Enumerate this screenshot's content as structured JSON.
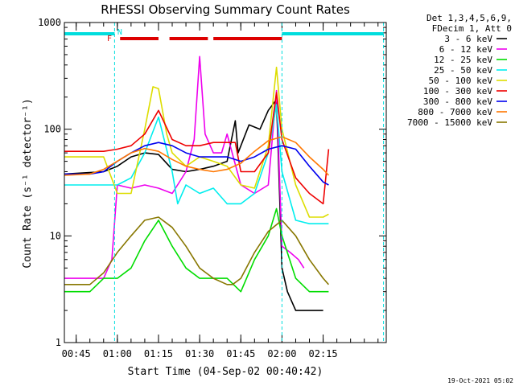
{
  "chart_data": {
    "type": "line",
    "title": "RHESSI Observing Summary Count Rates",
    "xlabel": "Start Time (04-Sep-02 00:40:42)",
    "ylabel": "Count Rate (s⁻¹ detector⁻¹)",
    "y_scale": "log",
    "ylim": [
      1,
      1000
    ],
    "xlim_minutes": [
      40.7,
      158
    ],
    "x_tick_labels": [
      "00:45",
      "01:00",
      "01:15",
      "01:30",
      "01:45",
      "02:00",
      "02:15"
    ],
    "x_tick_minutes": [
      45,
      60,
      75,
      90,
      105,
      120,
      135
    ],
    "y_tick_labels": [
      "1",
      "10",
      "100",
      "1000"
    ],
    "y_tick_values": [
      1,
      10,
      100,
      1000
    ],
    "legend_header": [
      "Det 1,3,4,5,6,9,",
      "FDecim 1, Att 0"
    ],
    "timestamp": "19-Oct-2021 05:02",
    "flags": {
      "F_label": "F",
      "N_label": "N",
      "F_color": "#dd0000",
      "N_color": "#00dddd"
    },
    "series": [
      {
        "name": "3 - 6 keV",
        "color": "#000000",
        "x": [
          40.7,
          55,
          60,
          65,
          70,
          75,
          80,
          85,
          90,
          95,
          100,
          103,
          104,
          108,
          112,
          115,
          118,
          120,
          122,
          125,
          130,
          135
        ],
        "y": [
          38,
          40,
          45,
          55,
          60,
          58,
          42,
          40,
          42,
          45,
          50,
          120,
          60,
          110,
          100,
          150,
          190,
          5,
          3,
          2,
          2,
          2
        ]
      },
      {
        "name": "6 - 12 keV",
        "color": "#ee00ee",
        "x": [
          40.7,
          55,
          58,
          60,
          65,
          70,
          75,
          80,
          85,
          88,
          90,
          92,
          95,
          98,
          100,
          105,
          110,
          115,
          118,
          120,
          123,
          126,
          128
        ],
        "y": [
          4,
          4,
          6,
          30,
          28,
          30,
          28,
          25,
          40,
          80,
          480,
          90,
          60,
          60,
          90,
          30,
          25,
          30,
          230,
          8,
          7,
          6,
          5
        ]
      },
      {
        "name": "12 - 25 keV",
        "color": "#00dd00",
        "x": [
          40.7,
          50,
          55,
          60,
          65,
          70,
          75,
          80,
          85,
          90,
          95,
          100,
          105,
          110,
          115,
          118,
          120,
          125,
          130,
          135,
          137
        ],
        "y": [
          3,
          3,
          4,
          4,
          5,
          9,
          14,
          8,
          5,
          4,
          4,
          4,
          3,
          6,
          10,
          18,
          10,
          4,
          3,
          3,
          3
        ]
      },
      {
        "name": "25 - 50 keV",
        "color": "#00eeee",
        "x": [
          40.7,
          50,
          55,
          60,
          65,
          70,
          75,
          80,
          82,
          85,
          90,
          95,
          100,
          105,
          110,
          115,
          118,
          120,
          125,
          130,
          135,
          137
        ],
        "y": [
          30,
          30,
          30,
          30,
          35,
          60,
          130,
          40,
          20,
          30,
          25,
          28,
          20,
          20,
          25,
          60,
          170,
          40,
          14,
          13,
          13,
          13
        ]
      },
      {
        "name": "50 - 100 keV",
        "color": "#dddd00",
        "x": [
          40.7,
          50,
          55,
          60,
          65,
          70,
          73,
          75,
          78,
          80,
          85,
          90,
          95,
          100,
          105,
          110,
          115,
          118,
          120,
          125,
          130,
          135,
          137
        ],
        "y": [
          55,
          55,
          55,
          25,
          25,
          100,
          250,
          240,
          90,
          60,
          45,
          55,
          50,
          45,
          30,
          28,
          70,
          380,
          100,
          30,
          15,
          15,
          16
        ]
      },
      {
        "name": "100 - 300 keV",
        "color": "#ee0000",
        "x": [
          40.7,
          50,
          55,
          60,
          65,
          70,
          75,
          80,
          85,
          90,
          95,
          100,
          103,
          105,
          110,
          115,
          118,
          120,
          125,
          130,
          135,
          137
        ],
        "y": [
          62,
          62,
          62,
          65,
          70,
          90,
          150,
          80,
          70,
          70,
          75,
          75,
          75,
          40,
          40,
          60,
          220,
          80,
          35,
          25,
          20,
          65
        ]
      },
      {
        "name": "300 - 800 keV",
        "color": "#0000ee",
        "x": [
          40.7,
          50,
          55,
          60,
          65,
          70,
          75,
          80,
          85,
          90,
          95,
          100,
          105,
          110,
          115,
          120,
          125,
          130,
          135,
          137
        ],
        "y": [
          38,
          38,
          40,
          50,
          60,
          70,
          75,
          70,
          60,
          55,
          55,
          55,
          50,
          55,
          65,
          70,
          65,
          45,
          32,
          30
        ]
      },
      {
        "name": "800 - 7000 keV",
        "color": "#ff7700",
        "x": [
          40.7,
          50,
          55,
          60,
          65,
          70,
          75,
          80,
          85,
          90,
          95,
          100,
          105,
          110,
          115,
          120,
          125,
          130,
          135,
          137
        ],
        "y": [
          37,
          38,
          42,
          50,
          60,
          66,
          62,
          52,
          45,
          42,
          40,
          42,
          48,
          62,
          78,
          85,
          75,
          55,
          42,
          37
        ]
      },
      {
        "name": "7000 - 15000 keV",
        "color": "#887700",
        "x": [
          40.7,
          50,
          55,
          60,
          65,
          70,
          75,
          80,
          85,
          90,
          95,
          100,
          102,
          105,
          110,
          115,
          120,
          125,
          130,
          135,
          137
        ],
        "y": [
          3.5,
          3.5,
          4.5,
          7,
          10,
          14,
          15,
          12,
          8,
          5,
          4,
          3.5,
          3.5,
          4,
          7,
          11,
          14,
          10,
          6,
          4,
          3.5
        ]
      }
    ]
  }
}
